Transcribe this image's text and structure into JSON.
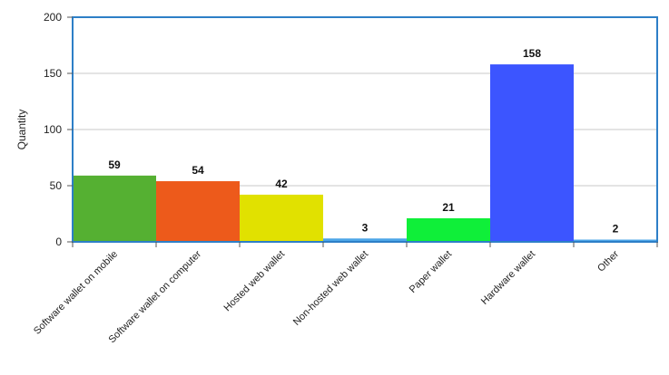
{
  "chart_data": {
    "type": "bar",
    "title": "",
    "xlabel": "",
    "ylabel": "Quantity",
    "ylim": [
      0,
      200
    ],
    "yticks": [
      0,
      50,
      100,
      150,
      200
    ],
    "grid": true,
    "categories": [
      "Software wallet on mobile",
      "Software wallet on computer",
      "Hosted web wallet",
      "Non-hosted web wallet",
      "Paper wallet",
      "Hardware wallet",
      "Other"
    ],
    "values": [
      59,
      54,
      42,
      3,
      21,
      158,
      2
    ],
    "value_labels": [
      "59",
      "54",
      "42",
      "3",
      "21",
      "158",
      "2"
    ],
    "colors": [
      "#55b032",
      "#ed5a1b",
      "#e1e100",
      "#4da6e8",
      "#0fef39",
      "#3c55ff",
      "#4da6e8"
    ],
    "frame_color": "#2d7fc7",
    "grid_color": "#c8c8c8"
  }
}
